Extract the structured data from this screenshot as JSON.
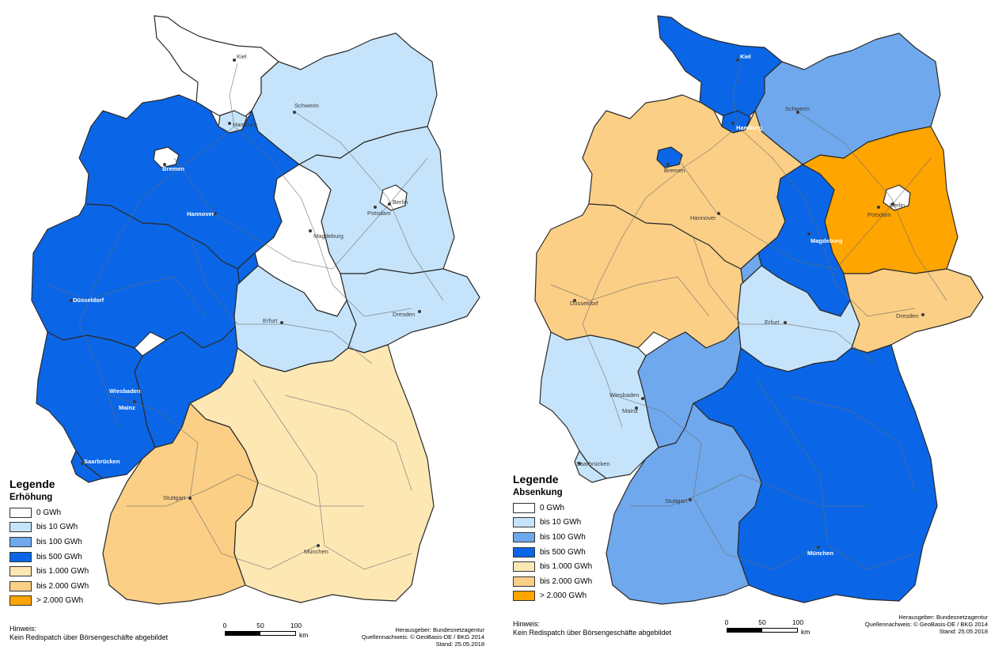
{
  "colors": {
    "c0": "#ffffff",
    "c10": "#c5e4fb",
    "c100": "#6fa8ec",
    "c500": "#0a66e6",
    "c1000": "#fde8b4",
    "c2000": "#fbcf86",
    "c2000plus": "#ffa500"
  },
  "left": {
    "legend_title": "Legende",
    "legend_subtitle": "Erhöhung",
    "legend_items": [
      {
        "label": "0 GWh",
        "color": "#ffffff"
      },
      {
        "label": "bis 10 GWh",
        "color": "#c5e4fb"
      },
      {
        "label": "bis 100 GWh",
        "color": "#6fa8ec"
      },
      {
        "label": "bis 500 GWh",
        "color": "#0a66e6"
      },
      {
        "label": "bis 1.000 GWh",
        "color": "#fde8b4"
      },
      {
        "label": "bis 2.000 GWh",
        "color": "#fbcf86"
      },
      {
        "label": "> 2.000 GWh",
        "color": "#ffa500"
      }
    ],
    "hint_label": "Hinweis:",
    "hint_text": "Kein Redispatch über Börsengeschäfte abgebildet",
    "scale": {
      "t0": "0",
      "t50": "50",
      "t100": "100",
      "unit": "km"
    },
    "credits": {
      "publisher": "Herausgeber: Bundesnetzagentur",
      "source": "Quellennachweis: © GeoBasis-DE / BKG 2014",
      "date": "Stand: 25.05.2018"
    },
    "cities": {
      "kiel": "Kiel",
      "hamburg": "Hamburg",
      "schwerin": "Schwerin",
      "bremen": "Bremen",
      "hannover": "Hannover",
      "berlin": "Berlin",
      "potsdam": "Potsdam",
      "magdeburg": "Magdeburg",
      "duesseldorf": "Düsseldorf",
      "erfurt": "Erfurt",
      "dresden": "Dresden",
      "wiesbaden": "Wiesbaden",
      "mainz": "Mainz",
      "saarbruecken": "Saarbrücken",
      "stuttgart": "Stuttgart",
      "muenchen": "München"
    }
  },
  "right": {
    "legend_title": "Legende",
    "legend_subtitle": "Absenkung",
    "legend_items": [
      {
        "label": "0 GWh",
        "color": "#ffffff"
      },
      {
        "label": "bis 10 GWh",
        "color": "#c5e4fb"
      },
      {
        "label": "bis 100 GWh",
        "color": "#6fa8ec"
      },
      {
        "label": "bis 500 GWh",
        "color": "#0a66e6"
      },
      {
        "label": "bis 1.000 GWh",
        "color": "#fde8b4"
      },
      {
        "label": "bis 2.000 GWh",
        "color": "#fbcf86"
      },
      {
        "label": "> 2.000 GWh",
        "color": "#ffa500"
      }
    ],
    "hint_label": "Hinweis:",
    "hint_text": "Kein Redispatch über Börsengeschäfte abgebildet",
    "scale": {
      "t0": "0",
      "t50": "50",
      "t100": "100",
      "unit": "km"
    },
    "credits": {
      "publisher": "Herausgeber: Bundesnetzagentur",
      "source": "Quellennachweis: © GeoBasis-DE / BKG 2014",
      "date": "Stand: 25.05.2018"
    },
    "cities": {
      "kiel": "Kiel",
      "hamburg": "Hamburg",
      "schwerin": "Schwerin",
      "bremen": "Bremen",
      "hannover": "Hannover",
      "berlin": "Berlin",
      "potsdam": "Potsdam",
      "magdeburg": "Magdeburg",
      "duesseldorf": "Düsseldorf",
      "erfurt": "Erfurt",
      "dresden": "Dresden",
      "wiesbaden": "Wiesbaden",
      "mainz": "Mainz",
      "saarbruecken": "Saarbrücken",
      "stuttgart": "Stuttgart",
      "muenchen": "München"
    }
  }
}
